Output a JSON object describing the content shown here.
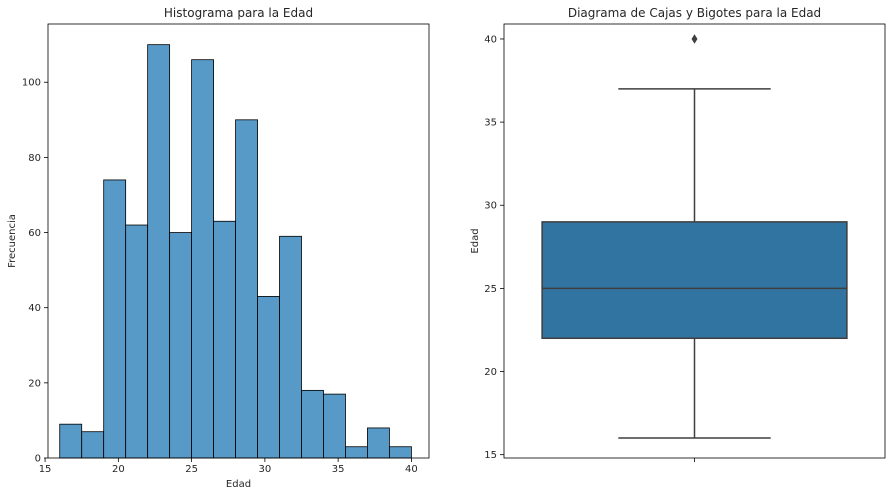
{
  "chart_data": [
    {
      "type": "bar",
      "title": "Histograma para la Edad",
      "xlabel": "Edad",
      "ylabel": "Frecuencia",
      "xlim": [
        15.2,
        41.2
      ],
      "ylim": [
        0,
        115.5
      ],
      "xticks": [
        15,
        20,
        25,
        30,
        35,
        40
      ],
      "yticks": [
        0,
        20,
        40,
        60,
        80,
        100
      ],
      "bin_edges": [
        16,
        17.5,
        19,
        20.5,
        22,
        23.5,
        25,
        26.5,
        28,
        29.5,
        31,
        32.5,
        34,
        35.5,
        37,
        38.5,
        40
      ],
      "values": [
        9,
        7,
        74,
        62,
        110,
        60,
        106,
        63,
        90,
        43,
        59,
        18,
        17,
        3,
        8,
        3
      ],
      "bar_color": "#5799c7",
      "edge_color": "#000000",
      "grid": false
    },
    {
      "type": "box",
      "title": "Diagrama de Cajas y Bigotes para la Edad",
      "xlabel": "",
      "ylabel": "Edad",
      "ylim": [
        14.8,
        40.9
      ],
      "yticks": [
        15,
        20,
        25,
        30,
        35,
        40
      ],
      "whisker_low": 16,
      "q1": 22,
      "median": 25,
      "q3": 29,
      "whisker_high": 37,
      "outliers": [
        40
      ],
      "box_color": "#3274a1",
      "line_color": "#3f3f3f",
      "grid": false
    }
  ]
}
